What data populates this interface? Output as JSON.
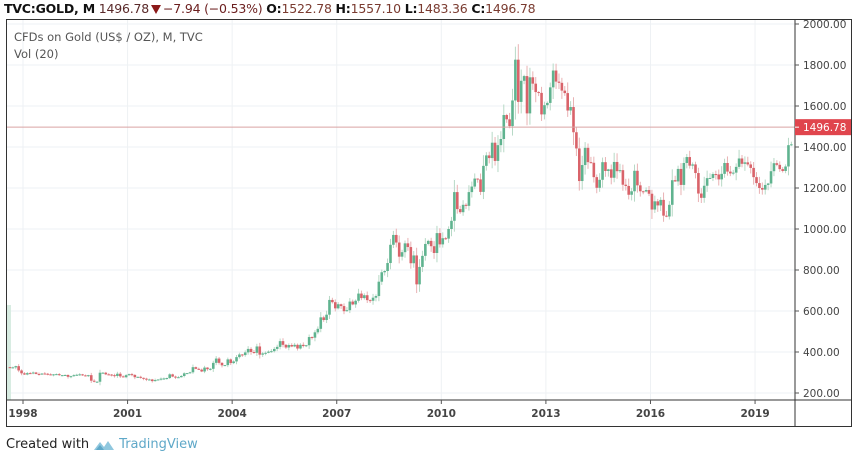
{
  "header": {
    "symbol": "TVC:GOLD, M",
    "last": "1496.78",
    "change": "−7.94 (−0.53%)",
    "open_label": "O:",
    "open": "1522.78",
    "high_label": "H:",
    "high": "1557.10",
    "low_label": "L:",
    "low": "1483.36",
    "close_label": "C:",
    "close": "1496.78"
  },
  "legend": {
    "title": "CFDs on Gold (US$ / OZ), M, TVC",
    "volume": "Vol (20)"
  },
  "price_tag": "1496.78",
  "footer": {
    "created_with": "Created with",
    "brand": "TradingView"
  },
  "colors": {
    "up": "#5fb38f",
    "down": "#d9636a",
    "wick_up": "#b7d9c6",
    "wick_down": "#e9b2b4",
    "price_line": "#d9a3a3",
    "price_tag_bg": "#e0454d",
    "grid": "#eef1f4",
    "volume": "#d8ece2"
  },
  "chart_data": {
    "type": "candlestick",
    "title": "CFDs on Gold (US$ / OZ), M, TVC",
    "xlabel": "",
    "ylabel": "",
    "y_tick_labels": [
      "2000.00",
      "1800.00",
      "1600.00",
      "1400.00",
      "1200.00",
      "1000.00",
      "800.00",
      "600.00",
      "400.00",
      "200.00"
    ],
    "x_tick_labels": [
      "1998",
      "2001",
      "2004",
      "2007",
      "2010",
      "2013",
      "2016",
      "2019"
    ],
    "ylim": [
      180,
      2020
    ],
    "current_price": 1496.78,
    "last_bar": {
      "open": 1522.78,
      "high": 1557.1,
      "low": 1483.36,
      "close": 1496.78
    },
    "grid": true,
    "legend_position": "top-left",
    "start": "1997-07",
    "monthly_close_approx": [
      326,
      324,
      325,
      331,
      310,
      296,
      290,
      297,
      296,
      300,
      293,
      292,
      295,
      294,
      291,
      289,
      291,
      292,
      287,
      287,
      288,
      279,
      282,
      287,
      289,
      291,
      286,
      282,
      287,
      260,
      255,
      255,
      299,
      299,
      291,
      290,
      287,
      283,
      294,
      281,
      277,
      287,
      292,
      288,
      277,
      279,
      274,
      270,
      265,
      266,
      258,
      263,
      266,
      270,
      271,
      273,
      291,
      280,
      275,
      277,
      283,
      296,
      297,
      301,
      326,
      318,
      314,
      305,
      324,
      316,
      318,
      347,
      368,
      347,
      335,
      336,
      364,
      346,
      354,
      375,
      388,
      385,
      398,
      415,
      400,
      396,
      427,
      387,
      393,
      396,
      402,
      404,
      415,
      425,
      453,
      435,
      422,
      434,
      427,
      435,
      417,
      435,
      429,
      433,
      473,
      470,
      496,
      513,
      569,
      556,
      582,
      654,
      643,
      613,
      633,
      624,
      599,
      604,
      646,
      632,
      650,
      685,
      663,
      677,
      653,
      650,
      665,
      673,
      743,
      789,
      795,
      834,
      923,
      971,
      934,
      865,
      887,
      930,
      912,
      833,
      871,
      730,
      815,
      869,
      927,
      942,
      916,
      883,
      980,
      925,
      955,
      953,
      1000,
      1040,
      1180,
      1097,
      1082,
      1118,
      1113,
      1180,
      1207,
      1246,
      1242,
      1181,
      1308,
      1359,
      1346,
      1421,
      1332,
      1409,
      1439,
      1556,
      1535,
      1502,
      1627,
      1826,
      1620,
      1723,
      1746,
      1564,
      1740,
      1709,
      1668,
      1664,
      1559,
      1604,
      1615,
      1691,
      1773,
      1719,
      1713,
      1675,
      1663,
      1578,
      1595,
      1472,
      1393,
      1234,
      1312,
      1396,
      1326,
      1323,
      1253,
      1201,
      1240,
      1326,
      1283,
      1291,
      1250,
      1327,
      1282,
      1287,
      1216,
      1210,
      1167,
      1184,
      1284,
      1213,
      1184,
      1183,
      1190,
      1172,
      1095,
      1135,
      1115,
      1142,
      1065,
      1061,
      1118,
      1238,
      1232,
      1293,
      1215,
      1322,
      1351,
      1309,
      1315,
      1273,
      1173,
      1152,
      1211,
      1248,
      1249,
      1268,
      1266,
      1242,
      1269,
      1322,
      1280,
      1271,
      1275,
      1303,
      1344,
      1318,
      1325,
      1315,
      1298,
      1253,
      1224,
      1200,
      1192,
      1215,
      1222,
      1282,
      1321,
      1313,
      1292,
      1283,
      1305,
      1409,
      1413,
      1520,
      1497
    ]
  }
}
